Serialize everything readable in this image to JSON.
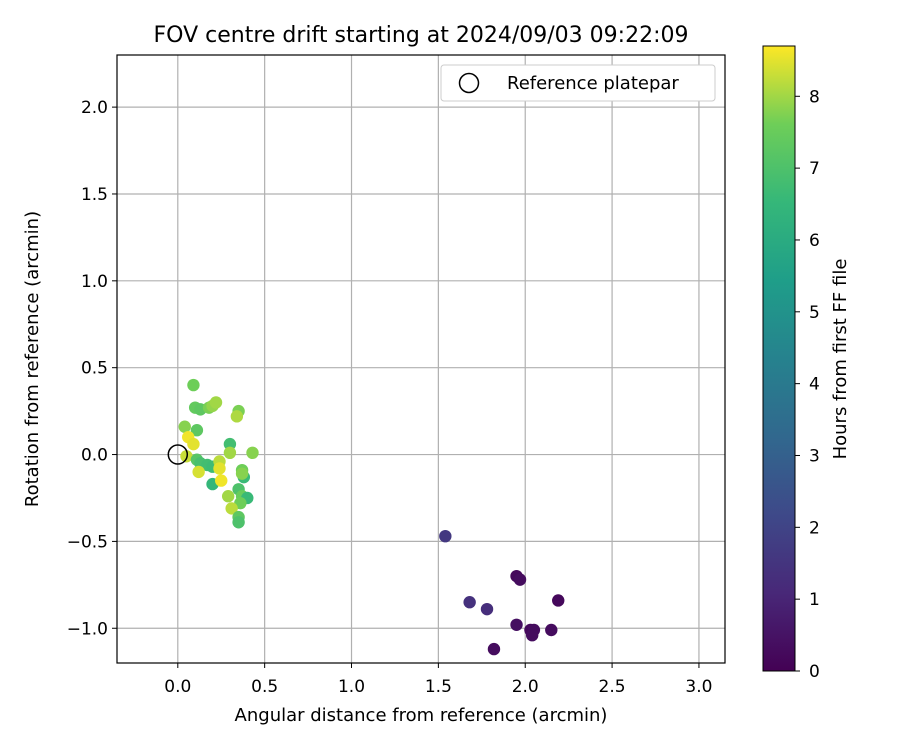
{
  "chart_data": {
    "type": "scatter",
    "title": "FOV centre drift starting at 2024/09/03 09:22:09",
    "xlabel": "Angular distance from reference (arcmin)",
    "ylabel": "Rotation from reference (arcmin)",
    "xlim": [
      -0.35,
      3.15
    ],
    "ylim": [
      -1.2,
      2.3
    ],
    "xticks": [
      0.0,
      0.5,
      1.0,
      1.5,
      2.0,
      2.5,
      3.0
    ],
    "xtick_labels": [
      "0.0",
      "0.5",
      "1.0",
      "1.5",
      "2.0",
      "2.5",
      "3.0"
    ],
    "yticks": [
      -1.0,
      -0.5,
      0.0,
      0.5,
      1.0,
      1.5,
      2.0
    ],
    "ytick_labels": [
      "−1.0",
      "−0.5",
      "0.0",
      "0.5",
      "1.0",
      "1.5",
      "2.0"
    ],
    "grid": true,
    "legend": {
      "position": "upper right",
      "entries": [
        "Reference platepar"
      ]
    },
    "reference_point": {
      "x": 0.0,
      "y": 0.0
    },
    "colormap": "viridis",
    "colorbar": {
      "label": "Hours from first FF file",
      "range": [
        0,
        8.7
      ],
      "ticks": [
        0,
        1,
        2,
        3,
        4,
        5,
        6,
        7,
        8
      ],
      "tick_labels": [
        "0",
        "1",
        "2",
        "3",
        "4",
        "5",
        "6",
        "7",
        "8"
      ]
    },
    "points": [
      {
        "x": 1.54,
        "y": -0.47,
        "c": 1.6
      },
      {
        "x": 1.68,
        "y": -0.85,
        "c": 1.4
      },
      {
        "x": 1.78,
        "y": -0.89,
        "c": 1.3
      },
      {
        "x": 1.82,
        "y": -1.12,
        "c": 0.3
      },
      {
        "x": 1.95,
        "y": -0.7,
        "c": 0.2
      },
      {
        "x": 1.97,
        "y": -0.72,
        "c": 0.3
      },
      {
        "x": 1.95,
        "y": -0.98,
        "c": 0.4
      },
      {
        "x": 2.03,
        "y": -1.01,
        "c": 0.2
      },
      {
        "x": 2.05,
        "y": -1.01,
        "c": 0.3
      },
      {
        "x": 2.04,
        "y": -1.04,
        "c": 0.3
      },
      {
        "x": 2.15,
        "y": -1.01,
        "c": 0.3
      },
      {
        "x": 2.19,
        "y": -0.84,
        "c": 0.2
      },
      {
        "x": 0.09,
        "y": 0.4,
        "c": 7.6
      },
      {
        "x": 0.1,
        "y": 0.27,
        "c": 7.4
      },
      {
        "x": 0.13,
        "y": 0.26,
        "c": 7.3
      },
      {
        "x": 0.18,
        "y": 0.27,
        "c": 7.7
      },
      {
        "x": 0.2,
        "y": 0.28,
        "c": 7.9
      },
      {
        "x": 0.22,
        "y": 0.3,
        "c": 8.0
      },
      {
        "x": 0.35,
        "y": 0.25,
        "c": 7.7
      },
      {
        "x": 0.34,
        "y": 0.22,
        "c": 8.1
      },
      {
        "x": 0.04,
        "y": 0.16,
        "c": 7.8
      },
      {
        "x": 0.11,
        "y": 0.14,
        "c": 7.3
      },
      {
        "x": 0.06,
        "y": 0.1,
        "c": 8.6
      },
      {
        "x": 0.09,
        "y": 0.06,
        "c": 8.5
      },
      {
        "x": 0.3,
        "y": 0.06,
        "c": 6.8
      },
      {
        "x": 0.3,
        "y": 0.01,
        "c": 8.0
      },
      {
        "x": 0.43,
        "y": 0.01,
        "c": 7.8
      },
      {
        "x": 0.05,
        "y": -0.01,
        "c": 8.3
      },
      {
        "x": 0.11,
        "y": -0.03,
        "c": 7.2
      },
      {
        "x": 0.13,
        "y": -0.05,
        "c": 6.9
      },
      {
        "x": 0.17,
        "y": -0.06,
        "c": 6.8
      },
      {
        "x": 0.2,
        "y": -0.07,
        "c": 6.7
      },
      {
        "x": 0.24,
        "y": -0.04,
        "c": 8.2
      },
      {
        "x": 0.24,
        "y": -0.08,
        "c": 8.5
      },
      {
        "x": 0.12,
        "y": -0.1,
        "c": 8.4
      },
      {
        "x": 0.37,
        "y": -0.09,
        "c": 7.6
      },
      {
        "x": 0.38,
        "y": -0.13,
        "c": 6.6
      },
      {
        "x": 0.37,
        "y": -0.11,
        "c": 7.8
      },
      {
        "x": 0.2,
        "y": -0.17,
        "c": 6.5
      },
      {
        "x": 0.25,
        "y": -0.15,
        "c": 8.6
      },
      {
        "x": 0.35,
        "y": -0.2,
        "c": 7.0
      },
      {
        "x": 0.29,
        "y": -0.24,
        "c": 8.0
      },
      {
        "x": 0.37,
        "y": -0.24,
        "c": 7.5
      },
      {
        "x": 0.4,
        "y": -0.25,
        "c": 6.6
      },
      {
        "x": 0.36,
        "y": -0.28,
        "c": 7.6
      },
      {
        "x": 0.31,
        "y": -0.31,
        "c": 8.2
      },
      {
        "x": 0.35,
        "y": -0.36,
        "c": 7.3
      },
      {
        "x": 0.35,
        "y": -0.39,
        "c": 7.0
      }
    ]
  }
}
